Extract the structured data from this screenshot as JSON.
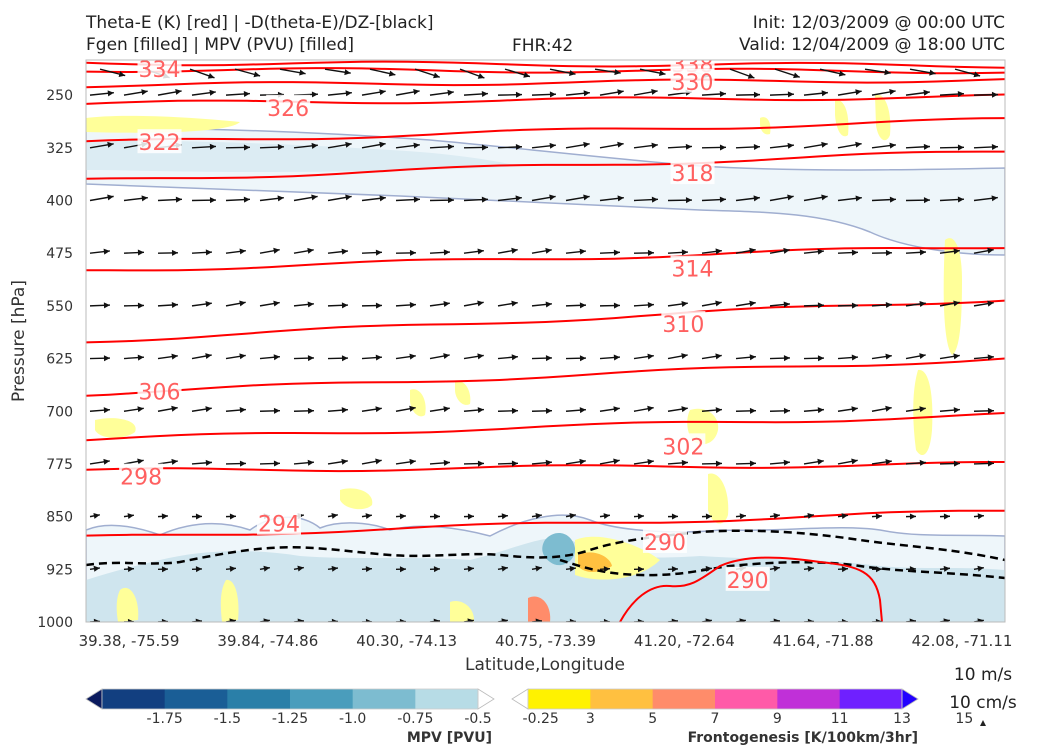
{
  "header": {
    "title_line1": "Theta-E (K) [red] | -D(theta-E)/DZ-[black]",
    "title_line2": "Fgen [filled] | MPV (PVU) [filled]",
    "fhr": "FHR:42",
    "init": "Init: 12/03/2009 @ 00:00 UTC",
    "valid": "Valid: 12/04/2009 @ 18:00 UTC"
  },
  "chart_data": {
    "type": "contour-cross-section",
    "xlabel": "Latitude,Longitude",
    "ylabel": "Pressure [hPa]",
    "x_ticks": [
      "39.38, -75.59",
      "39.84, -74.86",
      "40.30, -74.13",
      "40.75, -73.39",
      "41.20, -72.64",
      "41.64, -71.88",
      "42.08, -71.11"
    ],
    "y_ticks": [
      "250",
      "325",
      "400",
      "475",
      "550",
      "625",
      "700",
      "775",
      "850",
      "925",
      "1000"
    ],
    "ylim": [
      200,
      1000
    ],
    "y_inverted": true,
    "theta_e_labels": [
      {
        "value": "334",
        "x": 0.08,
        "p": 213
      },
      {
        "value": "338",
        "x": 0.66,
        "p": 206
      },
      {
        "value": "330",
        "x": 0.66,
        "p": 231
      },
      {
        "value": "326",
        "x": 0.22,
        "p": 268
      },
      {
        "value": "322",
        "x": 0.08,
        "p": 317
      },
      {
        "value": "318",
        "x": 0.66,
        "p": 361
      },
      {
        "value": "314",
        "x": 0.66,
        "p": 497
      },
      {
        "value": "310",
        "x": 0.65,
        "p": 576
      },
      {
        "value": "306",
        "x": 0.08,
        "p": 672
      },
      {
        "value": "302",
        "x": 0.65,
        "p": 750
      },
      {
        "value": "298",
        "x": 0.06,
        "p": 793
      },
      {
        "value": "294",
        "x": 0.21,
        "p": 860
      },
      {
        "value": "290",
        "x": 0.63,
        "p": 886
      },
      {
        "value": "290",
        "x": 0.72,
        "p": 940
      }
    ],
    "theta_e_contours": [
      {
        "p0": 204,
        "p1": 208
      },
      {
        "p0": 214,
        "p1": 216
      },
      {
        "p0": 236,
        "p1": 228
      },
      {
        "p0": 262,
        "p1": 252
      },
      {
        "p0": 318,
        "p1": 285
      },
      {
        "p0": 372,
        "p1": 330
      },
      {
        "p0": 500,
        "p1": 465
      },
      {
        "p0": 600,
        "p1": 540
      },
      {
        "p0": 675,
        "p1": 625
      },
      {
        "p0": 740,
        "p1": 705
      },
      {
        "p0": 785,
        "p1": 775
      },
      {
        "p0": 880,
        "p1": 842
      }
    ],
    "colorbar_mpv": {
      "label": "MPV [PVU]",
      "ticks": [
        "-1.75",
        "-1.5",
        "-1.25",
        "-1.0",
        "-0.75",
        "-0.5",
        "-0.25"
      ],
      "colors": [
        "#0a1a5e",
        "#123f80",
        "#1a5e96",
        "#2a7fa8",
        "#4a9dbc",
        "#7dbcd0",
        "#b7dce6",
        "#ffffff"
      ]
    },
    "colorbar_fgen": {
      "label": "Frontogenesis [K/100km/3hr]",
      "ticks": [
        "3",
        "5",
        "7",
        "9",
        "11",
        "13",
        "15"
      ],
      "colors": [
        "#ffffff",
        "#fff200",
        "#ffc040",
        "#ff8c6a",
        "#ff5aa8",
        "#c030d8",
        "#6f20ff",
        "#2200ff"
      ]
    },
    "wind_reference": {
      "horizontal": "10 m/s",
      "vertical": "10 cm/s"
    },
    "colors": {
      "theta_e": "#ff0000",
      "theta_e_label": "#ff6060",
      "mpv_outline": "#a0aed0"
    }
  }
}
